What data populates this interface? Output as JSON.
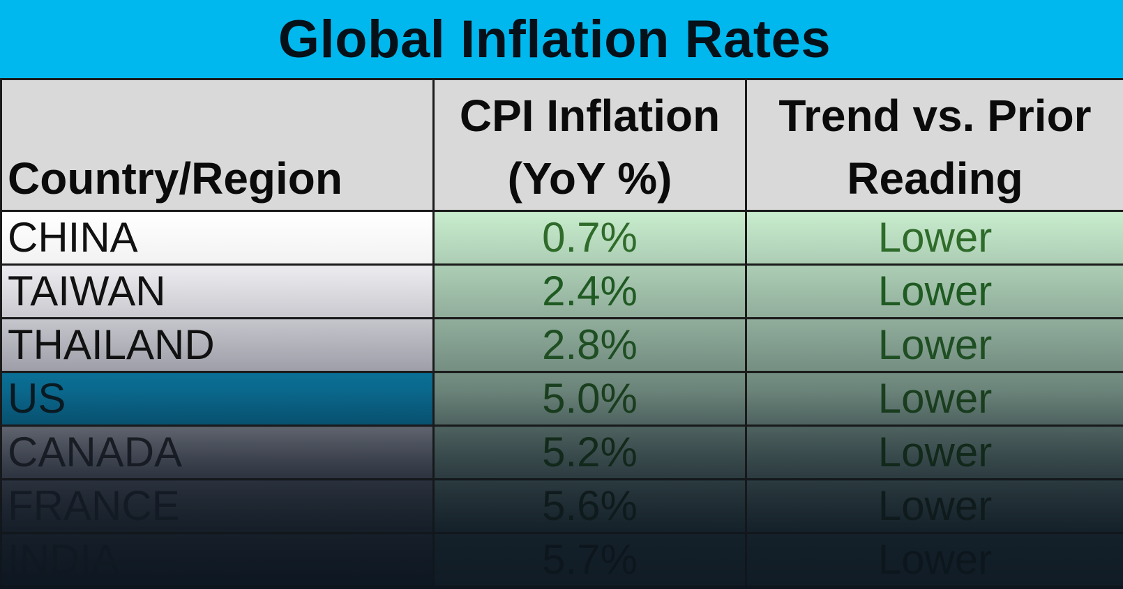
{
  "chart_data": {
    "type": "table",
    "title": "Global Inflation Rates",
    "columns": [
      "Country/Region",
      "CPI Inflation (YoY %)",
      "Trend vs. Prior Reading"
    ],
    "header_lines": {
      "col2": [
        "CPI Inflation",
        "(YoY %)"
      ],
      "col3": [
        "Trend vs. Prior",
        "Reading"
      ]
    },
    "rows": [
      {
        "country": "CHINA",
        "cpi": 0.7,
        "cpi_text": "0.7%",
        "trend": "Lower"
      },
      {
        "country": "TAIWAN",
        "cpi": 2.4,
        "cpi_text": "2.4%",
        "trend": "Lower"
      },
      {
        "country": "THAILAND",
        "cpi": 2.8,
        "cpi_text": "2.8%",
        "trend": "Lower"
      },
      {
        "country": "US",
        "cpi": 5.0,
        "cpi_text": "5.0%",
        "trend": "Lower"
      },
      {
        "country": "CANADA",
        "cpi": 5.2,
        "cpi_text": "5.2%",
        "trend": "Lower"
      },
      {
        "country": "FRANCE",
        "cpi": 5.6,
        "cpi_text": "5.6%",
        "trend": "Lower"
      },
      {
        "country": "INDIA",
        "cpi": 5.7,
        "cpi_text": "5.7%",
        "trend": "Lower"
      }
    ]
  },
  "colors": {
    "title_bg": "#00b8ee",
    "header_bg": "#d9d9d9",
    "highlight_row_bg": "#0a6d93",
    "value_text": "#1f5a1f"
  }
}
